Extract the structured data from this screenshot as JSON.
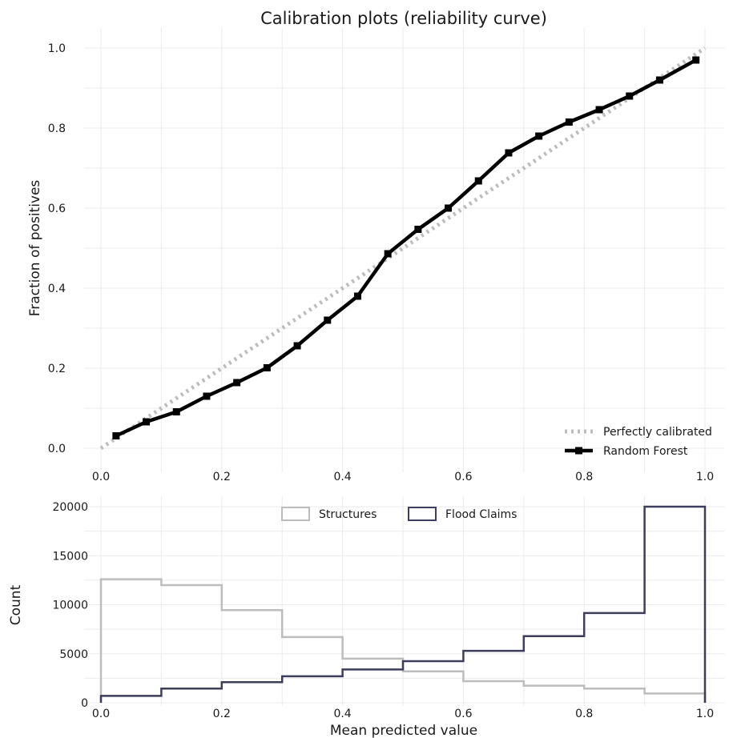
{
  "chart_data": [
    {
      "type": "line",
      "title": "Calibration plots  (reliability curve)",
      "xlabel": "",
      "ylabel": "Fraction of positives",
      "xlim": [
        0,
        1
      ],
      "ylim": [
        0,
        1
      ],
      "x_ticks": [
        "0.0",
        "0.2",
        "0.4",
        "0.6",
        "0.8",
        "1.0"
      ],
      "y_ticks": [
        "0.0",
        "0.2",
        "0.4",
        "0.6",
        "0.8",
        "1.0"
      ],
      "grid": true,
      "legend_position": "bottom-right",
      "series": [
        {
          "name": "Perfectly calibrated",
          "style": "dotted",
          "color": "#bdbdbd",
          "x": [
            0,
            1
          ],
          "y": [
            0,
            1
          ]
        },
        {
          "name": "Random Forest",
          "style": "solid-square-markers",
          "color": "#000000",
          "x": [
            0.025,
            0.075,
            0.125,
            0.175,
            0.225,
            0.275,
            0.325,
            0.375,
            0.425,
            0.475,
            0.525,
            0.575,
            0.625,
            0.675,
            0.725,
            0.775,
            0.825,
            0.875,
            0.925,
            0.985
          ],
          "y": [
            0.031,
            0.066,
            0.091,
            0.13,
            0.164,
            0.201,
            0.256,
            0.32,
            0.38,
            0.486,
            0.547,
            0.6,
            0.668,
            0.738,
            0.78,
            0.815,
            0.846,
            0.88,
            0.92,
            0.97
          ]
        }
      ]
    },
    {
      "type": "histogram",
      "title": "",
      "xlabel": "Mean predicted value",
      "ylabel": "Count",
      "xlim": [
        0,
        1
      ],
      "ylim": [
        0,
        20000
      ],
      "x_ticks": [
        "0.0",
        "0.2",
        "0.4",
        "0.6",
        "0.8",
        "1.0"
      ],
      "y_ticks": [
        "0",
        "5000",
        "10000",
        "15000",
        "20000"
      ],
      "grid": true,
      "legend_position": "top-center",
      "bin_edges": [
        0,
        0.1,
        0.2,
        0.3,
        0.4,
        0.5,
        0.6,
        0.7,
        0.8,
        0.9,
        1.0
      ],
      "series": [
        {
          "name": "Structures",
          "color": "#bdbdbd",
          "values": [
            12600,
            12000,
            9450,
            6700,
            4500,
            3200,
            2200,
            1750,
            1450,
            950
          ]
        },
        {
          "name": "Flood Claims",
          "color": "#3d3d5e",
          "values": [
            700,
            1450,
            2100,
            2700,
            3400,
            4250,
            5300,
            6800,
            9150,
            20000
          ]
        }
      ]
    }
  ]
}
